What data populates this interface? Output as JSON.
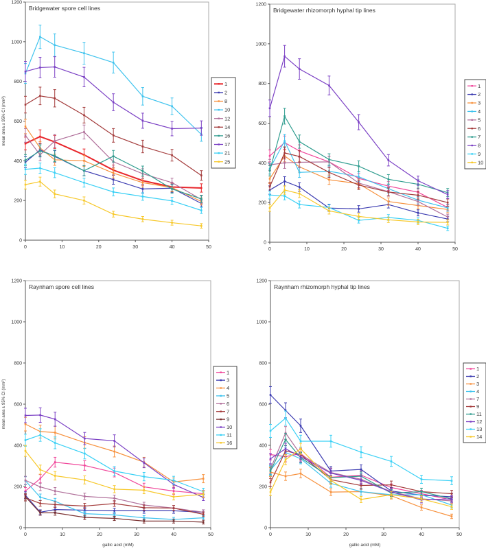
{
  "chart_data": [
    {
      "type": "line",
      "title": "Bridgewater spore cell lines",
      "xlabel": "",
      "ylabel": "mean area ± 95% CI (mm²)",
      "x": [
        0,
        4,
        8,
        16,
        24,
        32,
        40,
        48
      ],
      "xlim": [
        0,
        50
      ],
      "ylim": [
        0,
        1200
      ],
      "xticks": [
        0,
        10,
        20,
        30,
        40,
        50
      ],
      "yticks": [
        0,
        200,
        400,
        600,
        800,
        1000,
        1200
      ],
      "legend": "right",
      "series": [
        {
          "name": "1",
          "color": "#e8262b",
          "thick": true,
          "values": [
            487,
            522,
            495,
            430,
            353,
            300,
            268,
            263
          ]
        },
        {
          "name": "2",
          "color": "#3a3ab0",
          "values": [
            393,
            455,
            422,
            350,
            305,
            258,
            262,
            185
          ]
        },
        {
          "name": "8",
          "color": "#f7913d",
          "values": [
            573,
            465,
            405,
            400,
            338,
            290,
            265,
            195
          ]
        },
        {
          "name": "10",
          "color": "#3fc3ee",
          "values": [
            840,
            1025,
            983,
            942,
            895,
            725,
            675,
            533
          ]
        },
        {
          "name": "12",
          "color": "#b06f9a",
          "values": [
            528,
            430,
            500,
            545,
            395,
            335,
            290,
            205
          ]
        },
        {
          "name": "14",
          "color": "#a33a3a",
          "values": [
            683,
            727,
            715,
            630,
            528,
            472,
            428,
            326
          ]
        },
        {
          "name": "16",
          "color": "#2e9c8e",
          "values": [
            403,
            450,
            425,
            350,
            423,
            348,
            258,
            208
          ]
        },
        {
          "name": "17",
          "color": "#7a3fc4",
          "values": [
            850,
            870,
            873,
            822,
            695,
            602,
            562,
            565
          ]
        },
        {
          "name": "21",
          "color": "#3ad0f5",
          "values": [
            357,
            363,
            340,
            290,
            243,
            220,
            198,
            150
          ]
        },
        {
          "name": "25",
          "color": "#f7c82a",
          "values": [
            280,
            295,
            233,
            200,
            131,
            106,
            88,
            72
          ]
        }
      ]
    },
    {
      "type": "line",
      "title": "Bridgewater rhizomorph hyphal tip lines",
      "xlabel": "",
      "ylabel": "",
      "x": [
        0,
        4,
        8,
        16,
        24,
        32,
        40,
        48
      ],
      "xlim": [
        0,
        50
      ],
      "ylim": [
        0,
        1200
      ],
      "xticks": [
        0,
        10,
        20,
        30,
        40,
        50
      ],
      "yticks": [
        0,
        200,
        400,
        600,
        800,
        1000,
        1200
      ],
      "legend": "right",
      "series": [
        {
          "name": "1",
          "color": "#f0469a",
          "values": [
            435,
            502,
            460,
            405,
            322,
            283,
            252,
            175
          ]
        },
        {
          "name": "2",
          "color": "#3a3ab0",
          "values": [
            263,
            307,
            278,
            172,
            168,
            190,
            148,
            117
          ]
        },
        {
          "name": "3",
          "color": "#f7913d",
          "values": [
            320,
            435,
            380,
            315,
            295,
            205,
            185,
            165
          ]
        },
        {
          "name": "4",
          "color": "#3fc3ee",
          "values": [
            370,
            510,
            352,
            358,
            330,
            270,
            212,
            173
          ]
        },
        {
          "name": "5",
          "color": "#b06f9a",
          "values": [
            390,
            400,
            403,
            405,
            298,
            255,
            205,
            127
          ]
        },
        {
          "name": "6",
          "color": "#a33a3a",
          "values": [
            280,
            450,
            432,
            352,
            288,
            253,
            237,
            200
          ]
        },
        {
          "name": "7",
          "color": "#2e9c8e",
          "values": [
            360,
            635,
            507,
            417,
            383,
            317,
            292,
            250
          ]
        },
        {
          "name": "8",
          "color": "#7a3fc4",
          "values": [
            675,
            937,
            873,
            790,
            605,
            413,
            310,
            240
          ]
        },
        {
          "name": "9",
          "color": "#3ad0f5",
          "values": [
            238,
            233,
            190,
            175,
            110,
            125,
            110,
            70
          ]
        },
        {
          "name": "10",
          "color": "#f7c82a",
          "values": [
            172,
            263,
            245,
            158,
            130,
            113,
            102,
            100
          ]
        }
      ]
    },
    {
      "type": "line",
      "title": "Raynham spore cell lines",
      "xlabel": "gallic acid (mM)",
      "ylabel": "mean area ± 95% CI (mm²)",
      "x": [
        0,
        4,
        8,
        16,
        24,
        32,
        40,
        48
      ],
      "xlim": [
        0,
        50
      ],
      "ylim": [
        0,
        1200
      ],
      "xticks": [
        0,
        10,
        20,
        30,
        40,
        50
      ],
      "yticks": [
        0,
        200,
        400,
        600,
        800,
        1000,
        1200
      ],
      "legend": "right",
      "series": [
        {
          "name": "1",
          "color": "#f0469a",
          "values": [
            178,
            238,
            318,
            302,
            268,
            198,
            178,
            165
          ]
        },
        {
          "name": "3",
          "color": "#3a3ab0",
          "values": [
            158,
            75,
            88,
            85,
            82,
            82,
            82,
            75
          ]
        },
        {
          "name": "4",
          "color": "#f7913d",
          "values": [
            503,
            467,
            462,
            413,
            370,
            318,
            222,
            238
          ]
        },
        {
          "name": "5",
          "color": "#3fc3ee",
          "values": [
            228,
            148,
            128,
            68,
            62,
            48,
            40,
            48
          ]
        },
        {
          "name": "6",
          "color": "#b06f9a",
          "values": [
            230,
            198,
            178,
            152,
            143,
            110,
            95,
            75
          ]
        },
        {
          "name": "7",
          "color": "#a33a3a",
          "values": [
            145,
            118,
            112,
            105,
            117,
            97,
            95,
            65
          ]
        },
        {
          "name": "9",
          "color": "#7a3030",
          "values": [
            150,
            72,
            72,
            50,
            45,
            32,
            32,
            27
          ]
        },
        {
          "name": "10",
          "color": "#7a3fc4",
          "values": [
            545,
            547,
            527,
            433,
            422,
            315,
            210,
            147
          ]
        },
        {
          "name": "11",
          "color": "#3ad0f5",
          "values": [
            425,
            450,
            412,
            360,
            275,
            248,
            230,
            175
          ]
        },
        {
          "name": "16",
          "color": "#f7c82a",
          "values": [
            373,
            282,
            252,
            232,
            187,
            182,
            150,
            162
          ]
        }
      ]
    },
    {
      "type": "line",
      "title": "Raynham rhizomorph hyphal tip lines",
      "xlabel": "gallic acid (mM)",
      "ylabel": "",
      "x": [
        0,
        4,
        8,
        16,
        24,
        32,
        40,
        48
      ],
      "xlim": [
        0,
        50
      ],
      "ylim": [
        0,
        1200
      ],
      "xticks": [
        0,
        10,
        20,
        30,
        40,
        50
      ],
      "yticks": [
        0,
        200,
        400,
        600,
        800,
        1000,
        1200
      ],
      "legend": "right",
      "series": [
        {
          "name": "1",
          "color": "#f0469a",
          "values": [
            355,
            345,
            360,
            245,
            255,
            195,
            165,
            135
          ]
        },
        {
          "name": "2",
          "color": "#3a3ab0",
          "values": [
            645,
            570,
            495,
            275,
            283,
            178,
            158,
            150
          ]
        },
        {
          "name": "3",
          "color": "#f7913d",
          "values": [
            270,
            250,
            263,
            173,
            175,
            155,
            98,
            55
          ]
        },
        {
          "name": "4",
          "color": "#3fc3ee",
          "values": [
            280,
            365,
            335,
            215,
            175,
            160,
            160,
            110
          ]
        },
        {
          "name": "7",
          "color": "#b06f9a",
          "values": [
            285,
            460,
            355,
            268,
            235,
            175,
            140,
            130
          ]
        },
        {
          "name": "9",
          "color": "#a33a3a",
          "values": [
            220,
            373,
            355,
            233,
            205,
            208,
            175,
            165
          ]
        },
        {
          "name": "11",
          "color": "#2e9c8e",
          "values": [
            275,
            428,
            340,
            243,
            250,
            168,
            175,
            140
          ]
        },
        {
          "name": "12",
          "color": "#7a3fc4",
          "values": [
            335,
            383,
            345,
            265,
            230,
            173,
            135,
            140
          ]
        },
        {
          "name": "13",
          "color": "#3ad0f5",
          "values": [
            470,
            532,
            420,
            420,
            367,
            322,
            235,
            228
          ]
        },
        {
          "name": "14",
          "color": "#f7c82a",
          "values": [
            173,
            330,
            383,
            230,
            137,
            160,
            140,
            102
          ]
        }
      ]
    }
  ]
}
